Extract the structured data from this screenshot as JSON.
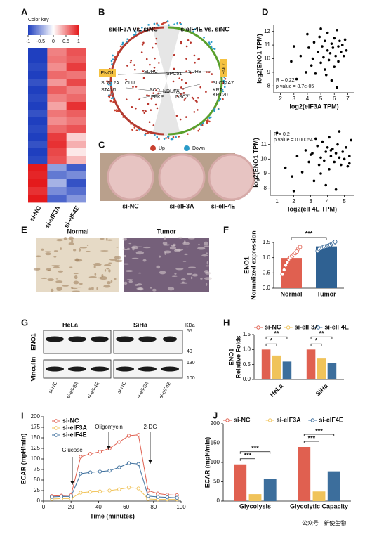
{
  "panel_labels": [
    "A",
    "B",
    "C",
    "D",
    "E",
    "F",
    "G",
    "H",
    "I",
    "J"
  ],
  "circos": {
    "titles": [
      "sieIF3A vs. siNC",
      "sieIF4E vs. siNC"
    ],
    "genes": [
      "ENO1",
      "ENO1",
      "SLC12A",
      "STAU1",
      "CLU",
      "SDHC",
      "SPC51",
      "SDHB",
      "SCD",
      "PFKP",
      "NDUFA",
      "DSC2",
      "KRT",
      "SLC12A7",
      "KRT20"
    ],
    "legend": [
      "Up",
      "Down"
    ]
  },
  "dishes": {
    "labels": [
      "si-NC",
      "si-eIF3A",
      "si-eIF4E"
    ]
  },
  "histology": {
    "labels": [
      "Normal",
      "Tumor"
    ]
  },
  "blot": {
    "cell_lines": [
      "HeLa",
      "SiHa"
    ],
    "unit": "KDa",
    "markers": [
      "55",
      "40",
      "130",
      "100"
    ],
    "proteins": [
      "ENO1",
      "Vinculin"
    ],
    "lanes": [
      "si-NC",
      "si-eIF3A",
      "si-eIF4E",
      "si-NC",
      "si-eIF3A",
      "si-eIF4E"
    ]
  },
  "watermark": "公众号 · 新使生物",
  "chart_data": [
    {
      "type": "heatmap",
      "title": "Color key",
      "columns": [
        "si-NC",
        "si-eIF3A",
        "si-eIF4E"
      ],
      "clim": [
        -1,
        1
      ],
      "cticks": [
        -1,
        -0.5,
        0,
        0.5,
        1
      ],
      "values": [
        [
          -1,
          0.55,
          0.75
        ],
        [
          -1,
          0.6,
          0.7
        ],
        [
          -0.95,
          0.5,
          0.85
        ],
        [
          -1,
          0.65,
          0.6
        ],
        [
          -0.9,
          0.45,
          0.8
        ],
        [
          -1,
          0.7,
          0.55
        ],
        [
          -0.95,
          0.55,
          0.65
        ],
        [
          -1,
          0.4,
          0.9
        ],
        [
          -0.9,
          0.6,
          0.7
        ],
        [
          -1,
          0.5,
          0.6
        ],
        [
          -0.95,
          0.65,
          0.75
        ],
        [
          -1,
          0.85,
          0.2
        ],
        [
          -0.9,
          0.9,
          0.35
        ],
        [
          -1,
          0.8,
          0.1
        ],
        [
          -0.95,
          0.75,
          0.3
        ],
        [
          1,
          -0.5,
          -0.85
        ],
        [
          0.95,
          -0.7,
          -0.6
        ],
        [
          1,
          -0.4,
          -0.9
        ],
        [
          0.9,
          -0.6,
          -0.75
        ],
        [
          1,
          -0.8,
          -0.55
        ]
      ]
    },
    {
      "type": "scatter",
      "xlabel": "log2(eIF3A TPM)",
      "ylabel": "log2(ENO1 TPM)",
      "annotations": [
        "R = 0.22",
        "p value = 8.7e-05"
      ],
      "color": "#000000",
      "x": [
        2.8,
        3.2,
        3.5,
        3.9,
        4.1,
        4.3,
        4.5,
        4.6,
        4.8,
        4.9,
        5.0,
        5.1,
        5.2,
        5.3,
        5.4,
        5.5,
        5.5,
        5.6,
        5.7,
        5.8,
        5.9,
        6.0,
        6.0,
        6.1,
        6.2,
        6.3,
        6.3,
        6.4,
        6.5,
        6.6,
        6.7,
        6.8,
        5.0,
        4.4,
        5.8,
        6.2,
        3.0,
        6.9,
        5.3,
        4.0
      ],
      "values": [
        9.8,
        8.5,
        10.2,
        9.0,
        10.8,
        9.5,
        11.2,
        8.9,
        10.5,
        11.6,
        9.7,
        10.9,
        10.1,
        11.3,
        8.8,
        10.6,
        11.9,
        9.9,
        10.4,
        11.1,
        10.8,
        9.4,
        11.5,
        10.2,
        12.1,
        10.9,
        9.8,
        11.3,
        10.5,
        11.0,
        10.2,
        11.4,
        12.2,
        10.0,
        8.4,
        7.9,
        10.9,
        10.6,
        9.2,
        11.8
      ],
      "xlim": [
        1.5,
        7.5
      ],
      "ylim": [
        7.5,
        12.5
      ],
      "xticks": [
        2,
        3,
        4,
        5,
        6,
        7
      ],
      "yticks": [
        8,
        9,
        10,
        11,
        12
      ]
    },
    {
      "type": "scatter",
      "xlabel": "log2(eIF4E TPM)",
      "ylabel": "log2(ENO1 TPM)",
      "annotations": [
        "R = 0.2",
        "p value = 0.00054"
      ],
      "color": "#000000",
      "x": [
        1.0,
        1.5,
        1.9,
        2.2,
        2.5,
        2.7,
        2.9,
        3.1,
        3.2,
        3.4,
        3.5,
        3.6,
        3.7,
        3.8,
        3.9,
        4.0,
        4.1,
        4.1,
        4.2,
        4.3,
        4.4,
        4.5,
        4.6,
        4.7,
        4.8,
        4.9,
        5.0,
        5.1,
        5.2,
        5.3,
        5.4,
        5.3,
        3.9,
        3.3,
        4.5,
        4.7,
        2.0,
        4.2,
        3.6,
        3.0
      ],
      "values": [
        11.8,
        9.4,
        8.8,
        10.2,
        9.1,
        10.6,
        9.8,
        10.4,
        8.5,
        10.9,
        9.6,
        10.1,
        11.2,
        9.9,
        10.5,
        10.8,
        9.3,
        11.5,
        10.2,
        10.7,
        9.8,
        10.4,
        11.0,
        10.1,
        9.6,
        10.5,
        10.0,
        10.8,
        9.5,
        10.2,
        11.3,
        9.7,
        8.2,
        11.4,
        7.9,
        11.9,
        7.8,
        10.6,
        9.0,
        10.3
      ],
      "xlim": [
        0.6,
        5.6
      ],
      "ylim": [
        7.5,
        12
      ],
      "xticks": [
        1,
        2,
        3,
        4,
        5
      ],
      "yticks": [
        8,
        9,
        10,
        11
      ]
    },
    {
      "type": "bar",
      "ylabel": [
        "ENO1",
        "Normalized expression"
      ],
      "categories": [
        "Normal",
        "Tumor"
      ],
      "values": [
        0.99,
        1.37
      ],
      "colors": [
        "#e06050",
        "#2f6192"
      ],
      "significance": [
        "***"
      ],
      "points": [
        [
          0.45,
          0.6,
          0.75,
          0.85,
          0.95,
          1.0,
          1.05,
          1.1,
          1.15,
          1.2,
          1.3,
          1.35
        ],
        [
          1.22,
          1.28,
          1.3,
          1.33,
          1.35,
          1.37,
          1.38,
          1.4,
          1.42,
          1.45,
          1.48,
          1.52
        ]
      ],
      "ylim": [
        0,
        1.5
      ],
      "yticks": [
        {
          "value": 0,
          "label": "0.0"
        },
        0.5,
        {
          "value": 1,
          "label": "1.0"
        },
        1.5
      ]
    },
    {
      "type": "grouped_bar",
      "ylabel": [
        "ENO1",
        "Relative Folds"
      ],
      "categories": [
        "HeLa",
        "SiHa"
      ],
      "series": [
        {
          "name": "si-NC",
          "color": "#e06050",
          "values": [
            1.0,
            1.0
          ]
        },
        {
          "name": "si-eIF3A",
          "color": "#f0c35a",
          "values": [
            0.8,
            0.7
          ]
        },
        {
          "name": "si-eIF4E",
          "color": "#3c6e9c",
          "values": [
            0.6,
            0.55
          ]
        }
      ],
      "significance": [
        "*",
        "**",
        "*",
        "**"
      ],
      "ylim": [
        0,
        1.5
      ],
      "yticks": [
        {
          "value": 0,
          "label": "0.0"
        },
        0.5,
        {
          "value": 1,
          "label": "1.0"
        },
        1.5
      ]
    },
    {
      "type": "line",
      "xlabel": "Time (minutes)",
      "ylabel": "ECAR (mpH/min)",
      "annotations": [
        "Glucose",
        "Oligomycin",
        "2-DG"
      ],
      "x": [
        6,
        13,
        20,
        27,
        34,
        41,
        48,
        55,
        62,
        69,
        76,
        83,
        90,
        97
      ],
      "series": [
        {
          "name": "si-NC",
          "color": "#e06050",
          "values": [
            12,
            13,
            14,
            105,
            112,
            117,
            125,
            140,
            155,
            157,
            25,
            18,
            15,
            14
          ]
        },
        {
          "name": "si-eIF3A",
          "color": "#f0c35a",
          "values": [
            5,
            6,
            6,
            20,
            22,
            23,
            25,
            28,
            32,
            30,
            5,
            4,
            4,
            4
          ]
        },
        {
          "name": "si-eIF4E",
          "color": "#3c6e9c",
          "values": [
            10,
            11,
            11,
            65,
            68,
            70,
            72,
            80,
            90,
            88,
            12,
            10,
            9,
            8
          ]
        }
      ],
      "xlim": [
        0,
        100
      ],
      "ylim": [
        0,
        200
      ],
      "xticks": [
        0,
        20,
        40,
        60,
        80,
        100
      ],
      "yticks": [
        0,
        25,
        50,
        75,
        100,
        125,
        150,
        175,
        200
      ]
    },
    {
      "type": "grouped_bar",
      "ylabel": [
        "ECAR (mpH/min)"
      ],
      "categories": [
        "Glycolysis",
        "Glycolytic Capacity"
      ],
      "series": [
        {
          "name": "si-NC",
          "color": "#e06050",
          "values": [
            95,
            140
          ]
        },
        {
          "name": "si-eIF3A",
          "color": "#f0c35a",
          "values": [
            18,
            25
          ]
        },
        {
          "name": "si-eIF4E",
          "color": "#3c6e9c",
          "values": [
            57,
            77
          ]
        }
      ],
      "significance": [
        "***",
        "***",
        "***",
        "***"
      ],
      "ylim": [
        0,
        200
      ],
      "yticks": [
        0,
        50,
        100,
        150,
        200
      ]
    }
  ]
}
